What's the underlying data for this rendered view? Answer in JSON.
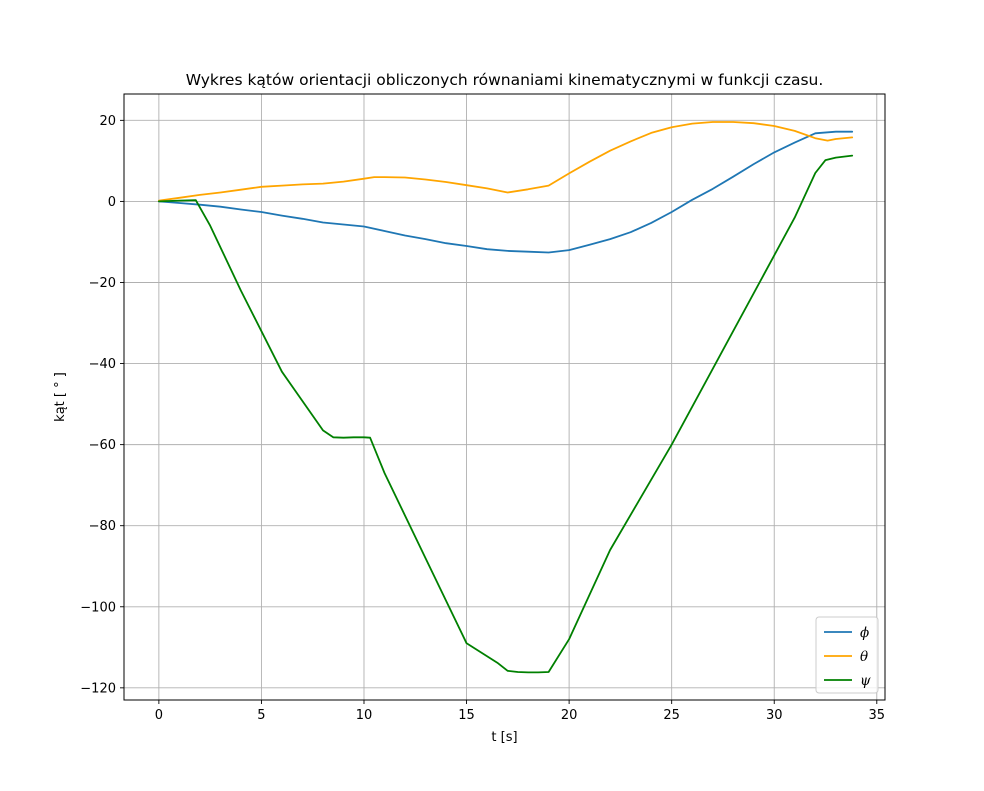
{
  "chart_data": {
    "type": "line",
    "title": "Wykres kątów orientacji obliczonych równaniami kinematycznymi w funkcji czasu.",
    "xlabel": "t [s]",
    "ylabel": "kąt [ ° ]",
    "xlim": [
      -1.7,
      35.4
    ],
    "ylim": [
      -123,
      26.5
    ],
    "xticks": [
      0,
      5,
      10,
      15,
      20,
      25,
      30,
      35
    ],
    "yticks": [
      -120,
      -100,
      -80,
      -60,
      -40,
      -20,
      0,
      20
    ],
    "xtick_labels": [
      "0",
      "5",
      "10",
      "15",
      "20",
      "25",
      "30",
      "35"
    ],
    "ytick_labels": [
      "−120",
      "−100",
      "−80",
      "−60",
      "−40",
      "−20",
      "0",
      "20"
    ],
    "grid": true,
    "legend_position": "lower-right",
    "series": [
      {
        "name": "ϕ",
        "color": "#1f77b4",
        "x": [
          0,
          1,
          2,
          3,
          4,
          5,
          6,
          7,
          8,
          9,
          10,
          11,
          12,
          13,
          14,
          15,
          16,
          17,
          18,
          19,
          20,
          21,
          22,
          23,
          24,
          25,
          26,
          27,
          28,
          29,
          30,
          31,
          32,
          33,
          33.8
        ],
        "y": [
          0,
          -0.4,
          -0.8,
          -1.3,
          -2.0,
          -2.6,
          -3.5,
          -4.3,
          -5.2,
          -5.7,
          -6.2,
          -7.3,
          -8.4,
          -9.3,
          -10.3,
          -11.0,
          -11.8,
          -12.2,
          -12.4,
          -12.6,
          -12.0,
          -10.7,
          -9.3,
          -7.6,
          -5.3,
          -2.6,
          0.4,
          3.1,
          6.1,
          9.2,
          12.1,
          14.5,
          16.8,
          17.2,
          17.2
        ]
      },
      {
        "name": "θ",
        "color": "#ffa500",
        "x": [
          0,
          1,
          2,
          3,
          4,
          5,
          6,
          7,
          8,
          9,
          10,
          10.5,
          11,
          12,
          13,
          14,
          15,
          16,
          17,
          18,
          19,
          20,
          21,
          22,
          23,
          24,
          25,
          26,
          27,
          28,
          29,
          30,
          31,
          32,
          32.6,
          33,
          33.8
        ],
        "y": [
          0.2,
          0.9,
          1.6,
          2.2,
          2.9,
          3.6,
          3.9,
          4.2,
          4.4,
          4.9,
          5.6,
          6.0,
          6.0,
          5.9,
          5.4,
          4.8,
          4.0,
          3.2,
          2.2,
          3.0,
          3.9,
          6.9,
          9.8,
          12.5,
          14.8,
          16.9,
          18.3,
          19.2,
          19.6,
          19.6,
          19.3,
          18.6,
          17.4,
          15.6,
          15.0,
          15.4,
          15.8
        ]
      },
      {
        "name": "ψ",
        "color": "#008000",
        "x": [
          0,
          1,
          1.8,
          2.5,
          4,
          6,
          8,
          8.5,
          9,
          9.5,
          10,
          10.3,
          11,
          13,
          15,
          16.5,
          17,
          17.5,
          18,
          18.5,
          19,
          20,
          22,
          25,
          28,
          31,
          32,
          32.5,
          33,
          33.8
        ],
        "y": [
          0,
          0.2,
          0.3,
          -6,
          -22,
          -42,
          -56.5,
          -58.2,
          -58.3,
          -58.2,
          -58.2,
          -58.3,
          -67,
          -88,
          -109,
          -113.8,
          -115.8,
          -116.1,
          -116.2,
          -116.2,
          -116.1,
          -108,
          -86,
          -60,
          -32,
          -4,
          7,
          10.2,
          10.8,
          11.3
        ]
      }
    ]
  }
}
